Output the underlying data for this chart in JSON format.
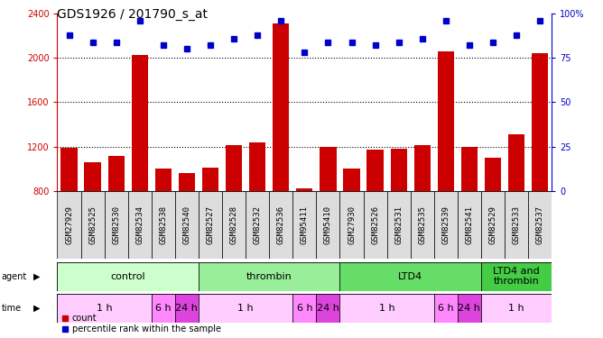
{
  "title": "GDS1926 / 201790_s_at",
  "samples": [
    "GSM27929",
    "GSM82525",
    "GSM82530",
    "GSM82534",
    "GSM82538",
    "GSM82540",
    "GSM82527",
    "GSM82528",
    "GSM82532",
    "GSM82536",
    "GSM95411",
    "GSM95410",
    "GSM27930",
    "GSM82526",
    "GSM82531",
    "GSM82535",
    "GSM82539",
    "GSM82541",
    "GSM82529",
    "GSM82533",
    "GSM82537"
  ],
  "counts": [
    1190,
    1060,
    1120,
    2030,
    1000,
    960,
    1010,
    1210,
    1240,
    2310,
    820,
    1200,
    1000,
    1170,
    1180,
    1210,
    2060,
    1200,
    1100,
    1310,
    2040
  ],
  "percentiles": [
    88,
    84,
    84,
    96,
    82,
    80,
    82,
    86,
    88,
    96,
    78,
    84,
    84,
    82,
    84,
    86,
    96,
    82,
    84,
    88,
    96
  ],
  "ylim_left": [
    800,
    2400
  ],
  "ylim_right": [
    0,
    100
  ],
  "yticks_left": [
    800,
    1200,
    1600,
    2000,
    2400
  ],
  "yticks_right": [
    0,
    25,
    50,
    75,
    100
  ],
  "ytick_labels_right": [
    "0",
    "25",
    "50",
    "75",
    "100%"
  ],
  "bar_color": "#cc0000",
  "dot_color": "#0000cc",
  "agent_groups": [
    {
      "label": "control",
      "start": 0,
      "end": 6,
      "color": "#ccffcc"
    },
    {
      "label": "thrombin",
      "start": 6,
      "end": 12,
      "color": "#99ee99"
    },
    {
      "label": "LTD4",
      "start": 12,
      "end": 18,
      "color": "#66dd66"
    },
    {
      "label": "LTD4 and\nthrombin",
      "start": 18,
      "end": 21,
      "color": "#44cc44"
    }
  ],
  "time_groups": [
    {
      "label": "1 h",
      "start": 0,
      "end": 4,
      "color": "#ffccff"
    },
    {
      "label": "6 h",
      "start": 4,
      "end": 5,
      "color": "#ff88ff"
    },
    {
      "label": "24 h",
      "start": 5,
      "end": 6,
      "color": "#dd44dd"
    },
    {
      "label": "1 h",
      "start": 6,
      "end": 10,
      "color": "#ffccff"
    },
    {
      "label": "6 h",
      "start": 10,
      "end": 11,
      "color": "#ff88ff"
    },
    {
      "label": "24 h",
      "start": 11,
      "end": 12,
      "color": "#dd44dd"
    },
    {
      "label": "1 h",
      "start": 12,
      "end": 16,
      "color": "#ffccff"
    },
    {
      "label": "6 h",
      "start": 16,
      "end": 17,
      "color": "#ff88ff"
    },
    {
      "label": "24 h",
      "start": 17,
      "end": 18,
      "color": "#dd44dd"
    },
    {
      "label": "1 h",
      "start": 18,
      "end": 21,
      "color": "#ffccff"
    }
  ],
  "label_fontsize": 8,
  "tick_fontsize": 7,
  "title_fontsize": 10,
  "sample_label_fontsize": 6.5
}
